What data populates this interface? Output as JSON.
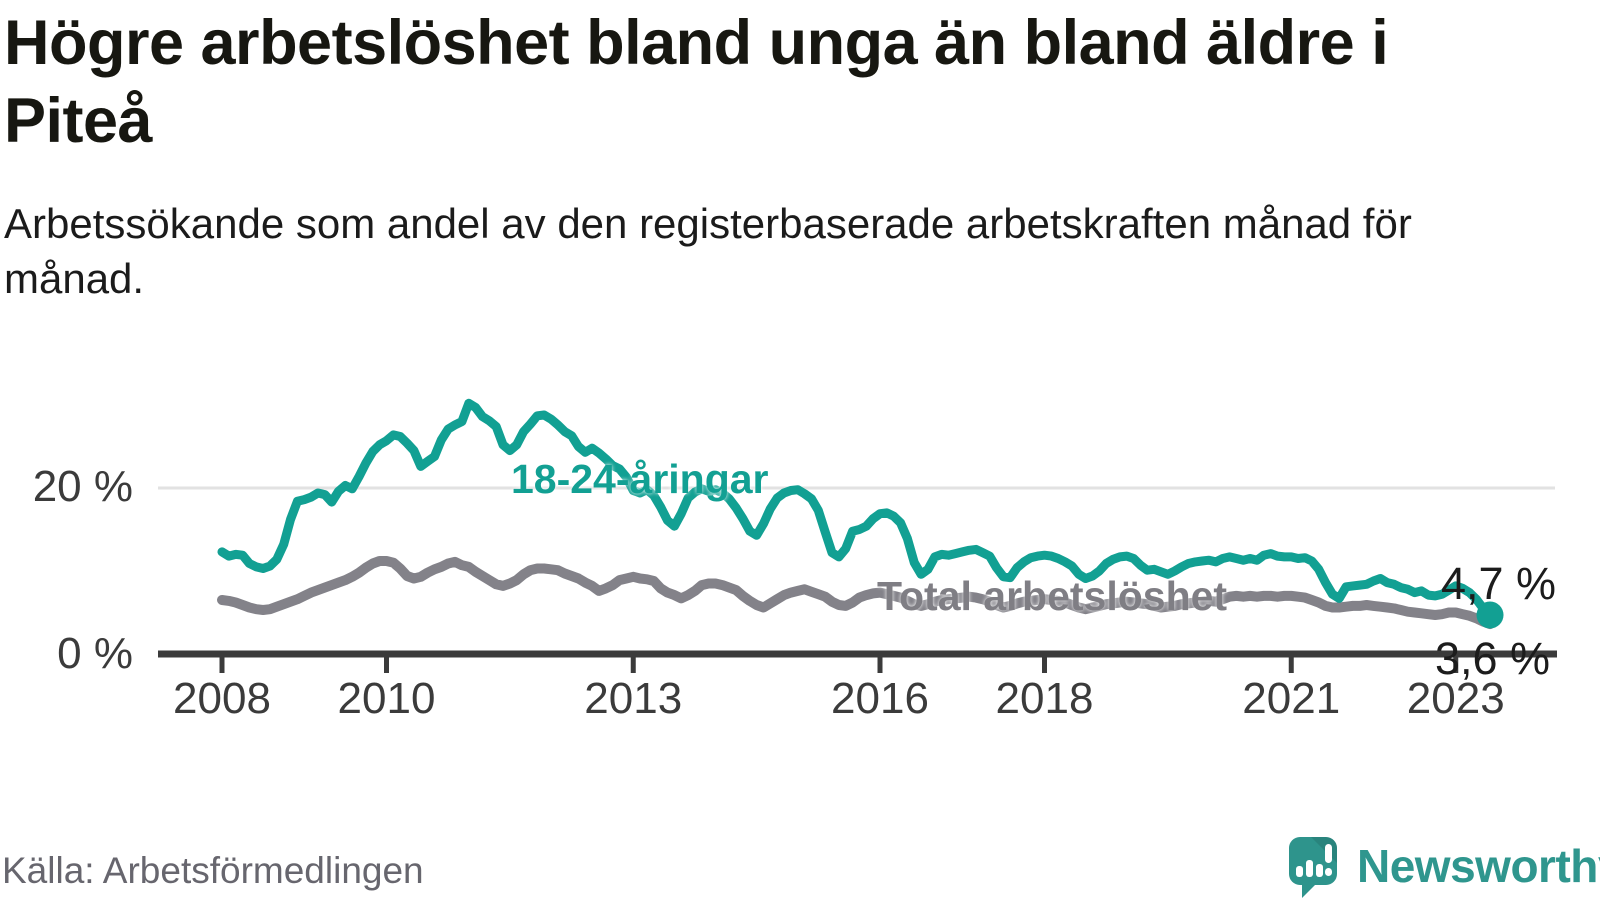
{
  "header": {
    "title": "Högre arbetslöshet bland unga än bland äldre i Piteå",
    "subtitle": "Arbetssökande som andel av den registerbaserade arbetskraften månad för månad."
  },
  "footer": {
    "source": "Källa: Arbetsförmedlingen",
    "brand": "Newsworthy",
    "logo_icon": "newsworthy-speech-bubble-bar-chart-icon"
  },
  "colors": {
    "youth_line": "#12a093",
    "total_line": "#838289",
    "axis": "#3b3b3b",
    "gridline": "#e2e2e2",
    "text_dark": "#171711",
    "source_text": "#67666e",
    "brand_teal": "#2f968e"
  },
  "chart_data": {
    "type": "line",
    "unit": "%",
    "start_year": 2008,
    "points_per_year": 12,
    "ylim": [
      0,
      32
    ],
    "grid": "single-line-at-20",
    "x_ticks": [
      2008,
      2010,
      2013,
      2016,
      2018,
      2021,
      2023
    ],
    "y_ticks": [
      {
        "value": 20,
        "label": "20 %"
      },
      {
        "value": 0,
        "label": "0 %"
      }
    ],
    "series": [
      {
        "name": "18-24-åringar",
        "color": "#12a093",
        "end_label": "4,7 %",
        "end_value": 4.7,
        "values": [
          12.3,
          11.8,
          12.0,
          11.9,
          10.9,
          10.5,
          10.3,
          10.6,
          11.4,
          13.2,
          16.2,
          18.4,
          18.6,
          18.9,
          19.4,
          19.2,
          18.3,
          19.6,
          20.3,
          19.9,
          21.4,
          23.0,
          24.4,
          25.2,
          25.7,
          26.4,
          26.2,
          25.4,
          24.5,
          22.6,
          23.2,
          23.8,
          25.8,
          27.1,
          27.6,
          28.0,
          30.2,
          29.7,
          28.6,
          28.1,
          27.4,
          25.2,
          24.5,
          25.2,
          26.8,
          27.7,
          28.7,
          28.8,
          28.3,
          27.6,
          26.8,
          26.3,
          25.0,
          24.3,
          24.8,
          24.2,
          23.5,
          22.7,
          22.3,
          21.3,
          19.7,
          19.4,
          19.8,
          19.1,
          17.7,
          16.1,
          15.4,
          16.9,
          18.8,
          19.5,
          19.9,
          19.6,
          19.8,
          19.4,
          18.7,
          17.6,
          16.3,
          14.8,
          14.3,
          15.7,
          17.5,
          18.8,
          19.4,
          19.7,
          19.8,
          19.3,
          18.7,
          17.3,
          14.7,
          12.2,
          11.7,
          12.7,
          14.8,
          15.0,
          15.4,
          16.3,
          16.9,
          17.0,
          16.6,
          15.8,
          13.9,
          11.0,
          9.6,
          10.2,
          11.7,
          12.0,
          11.9,
          12.1,
          12.3,
          12.5,
          12.6,
          12.2,
          11.8,
          10.4,
          9.3,
          9.2,
          10.4,
          11.1,
          11.6,
          11.8,
          11.9,
          11.8,
          11.5,
          11.1,
          10.6,
          9.6,
          9.1,
          9.4,
          10.0,
          10.9,
          11.4,
          11.7,
          11.8,
          11.5,
          10.7,
          10.1,
          10.2,
          9.9,
          9.6,
          10.0,
          10.5,
          10.9,
          11.1,
          11.2,
          11.3,
          11.1,
          11.5,
          11.7,
          11.5,
          11.3,
          11.5,
          11.3,
          11.9,
          12.1,
          11.8,
          11.7,
          11.7,
          11.5,
          11.6,
          11.2,
          10.2,
          8.6,
          7.2,
          6.7,
          8.1,
          8.2,
          8.3,
          8.4,
          8.8,
          9.1,
          8.6,
          8.4,
          8.0,
          7.8,
          7.4,
          7.6,
          7.1,
          7.0,
          7.2,
          7.7,
          8.2,
          7.9,
          7.4,
          6.6,
          5.5,
          4.7
        ]
      },
      {
        "name": "Total arbetslöshet",
        "color": "#838289",
        "end_label": "3,6 %",
        "end_value": 3.6,
        "values": [
          6.5,
          6.4,
          6.2,
          5.9,
          5.6,
          5.4,
          5.3,
          5.4,
          5.7,
          6.0,
          6.3,
          6.6,
          7.0,
          7.4,
          7.7,
          8.0,
          8.3,
          8.6,
          8.9,
          9.3,
          9.8,
          10.4,
          10.9,
          11.2,
          11.2,
          11.0,
          10.3,
          9.4,
          9.1,
          9.3,
          9.8,
          10.2,
          10.5,
          10.9,
          11.1,
          10.7,
          10.5,
          9.9,
          9.4,
          8.9,
          8.4,
          8.2,
          8.5,
          8.9,
          9.6,
          10.1,
          10.3,
          10.3,
          10.2,
          10.1,
          9.7,
          9.4,
          9.1,
          8.6,
          8.2,
          7.6,
          7.9,
          8.3,
          8.9,
          9.1,
          9.3,
          9.1,
          9.0,
          8.8,
          7.9,
          7.4,
          7.1,
          6.7,
          7.1,
          7.6,
          8.3,
          8.5,
          8.5,
          8.3,
          8.0,
          7.7,
          7.0,
          6.4,
          5.9,
          5.6,
          6.1,
          6.6,
          7.1,
          7.4,
          7.6,
          7.8,
          7.5,
          7.2,
          6.9,
          6.3,
          5.9,
          5.8,
          6.2,
          6.8,
          7.1,
          7.3,
          7.4,
          7.2,
          7.0,
          6.8,
          6.4,
          6.0,
          5.8,
          6.0,
          6.3,
          6.5,
          6.6,
          6.7,
          6.8,
          6.9,
          6.8,
          6.6,
          6.3,
          5.9,
          5.6,
          5.8,
          6.1,
          6.3,
          6.4,
          6.5,
          6.6,
          6.5,
          6.4,
          6.2,
          5.9,
          5.6,
          5.4,
          5.6,
          5.8,
          6.0,
          6.1,
          6.2,
          6.3,
          6.2,
          6.1,
          6.0,
          5.8,
          5.6,
          5.7,
          5.8,
          6.0,
          6.1,
          6.2,
          6.3,
          6.4,
          6.3,
          6.6,
          6.9,
          7.0,
          6.9,
          7.0,
          6.9,
          7.0,
          7.0,
          6.9,
          7.0,
          7.0,
          6.9,
          6.8,
          6.5,
          6.2,
          5.8,
          5.6,
          5.6,
          5.7,
          5.8,
          5.8,
          5.9,
          5.8,
          5.7,
          5.6,
          5.5,
          5.3,
          5.1,
          5.0,
          4.9,
          4.8,
          4.7,
          4.8,
          5.0,
          5.0,
          4.8,
          4.6,
          4.3,
          3.9,
          3.6
        ]
      }
    ]
  }
}
